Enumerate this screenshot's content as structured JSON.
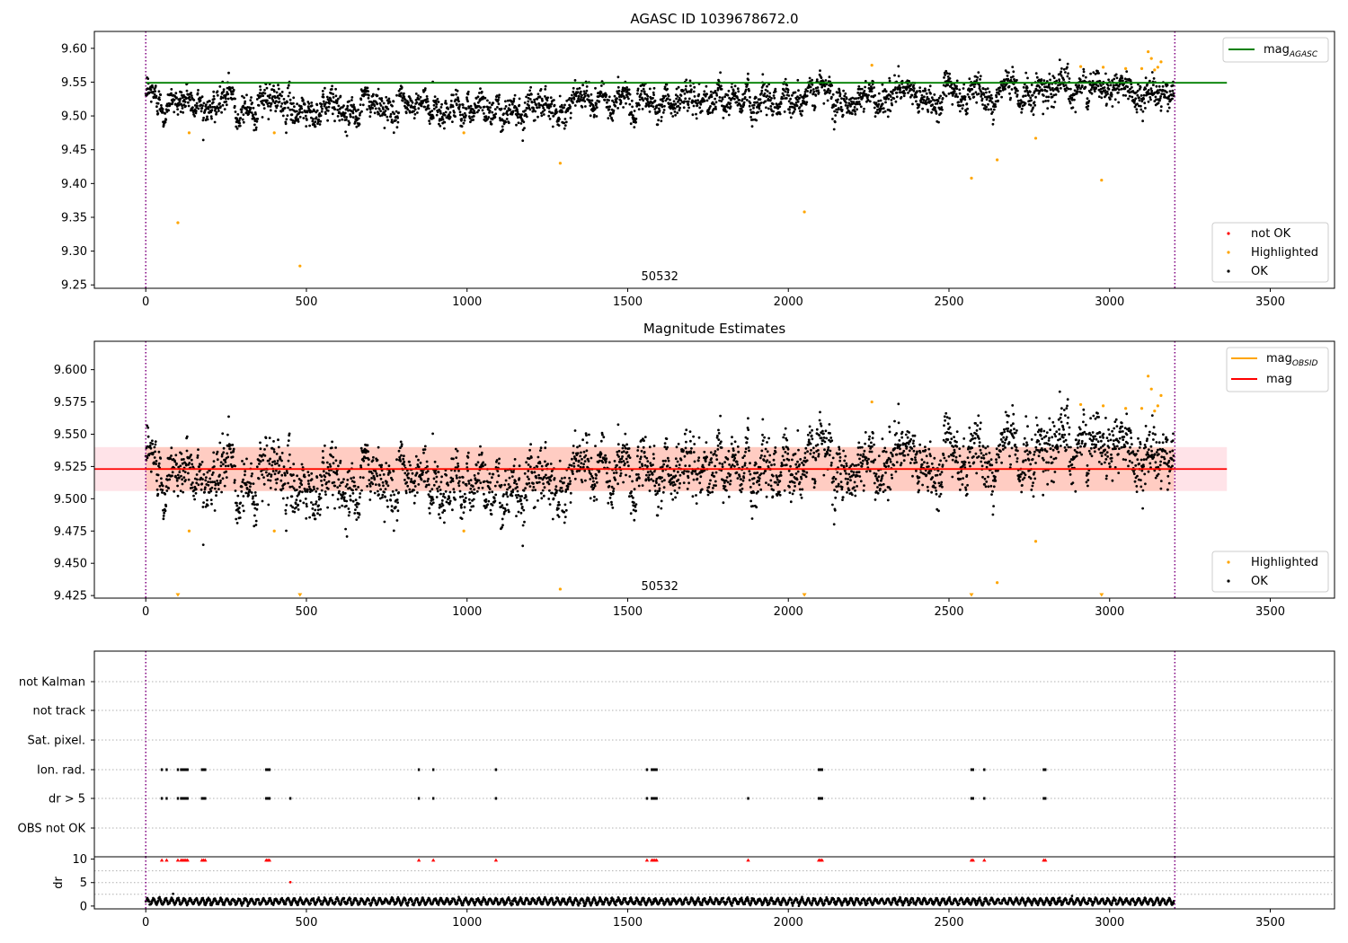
{
  "figure": {
    "title": "AGASC ID 1039678672.0"
  },
  "chart_data": [
    {
      "id": "mag-agasc-panel",
      "type": "scatter",
      "title": "",
      "xlabel": "",
      "ylabel": "",
      "xlim": [
        -160,
        3700
      ],
      "ylim": [
        9.245,
        9.625
      ],
      "xticks": [
        0,
        500,
        1000,
        1500,
        2000,
        2500,
        3000,
        3500
      ],
      "xtick_labels": [
        "0",
        "500",
        "1000",
        "1500",
        "2000",
        "2500",
        "3000",
        "3500"
      ],
      "yticks": [
        9.25,
        9.3,
        9.35,
        9.4,
        9.45,
        9.5,
        9.55,
        9.6
      ],
      "ytick_labels": [
        "9.25",
        "9.30",
        "9.35",
        "9.40",
        "9.45",
        "9.50",
        "9.55",
        "9.60"
      ],
      "obsid_label": "50532",
      "obsid_label_x": 1600,
      "obs_bounds": [
        0,
        3203
      ],
      "hline": {
        "name": "mag_AGASC",
        "y": 9.549,
        "x_range": [
          0,
          3365
        ],
        "color": "#008000"
      },
      "ok_points": {
        "name": "OK",
        "count": 3200,
        "x_range": [
          0,
          3200
        ],
        "baseline_knots": [
          [
            0,
            9.527
          ],
          [
            300,
            9.517
          ],
          [
            700,
            9.511
          ],
          [
            1000,
            9.515
          ],
          [
            1400,
            9.522
          ],
          [
            1800,
            9.522
          ],
          [
            2050,
            9.531
          ],
          [
            2400,
            9.527
          ],
          [
            2800,
            9.536
          ],
          [
            3100,
            9.545
          ],
          [
            3200,
            9.52
          ]
        ],
        "scatter": 0.012,
        "color": "#000000"
      },
      "highlighted_points": {
        "name": "Highlighted",
        "color": "#ffa500",
        "points": [
          [
            100,
            9.342
          ],
          [
            135,
            9.475
          ],
          [
            400,
            9.475
          ],
          [
            480,
            9.278
          ],
          [
            990,
            9.475
          ],
          [
            1290,
            9.43
          ],
          [
            2050,
            9.358
          ],
          [
            2260,
            9.575
          ],
          [
            2570,
            9.408
          ],
          [
            2650,
            9.435
          ],
          [
            2770,
            9.467
          ],
          [
            2910,
            9.573
          ],
          [
            2975,
            9.405
          ],
          [
            2980,
            9.572
          ],
          [
            3050,
            9.57
          ],
          [
            3100,
            9.57
          ],
          [
            3120,
            9.595
          ],
          [
            3130,
            9.585
          ],
          [
            3140,
            9.568
          ],
          [
            3150,
            9.572
          ],
          [
            3160,
            9.58
          ]
        ]
      },
      "legend_top": [
        {
          "label_main": "mag",
          "label_sub": "AGASC",
          "color": "#008000"
        }
      ],
      "legend_bottom": [
        {
          "label": "not OK",
          "color": "#ff0000"
        },
        {
          "label": "Highlighted",
          "color": "#ffa500"
        },
        {
          "label": "OK",
          "color": "#000000"
        }
      ]
    },
    {
      "id": "magnitude-estimates-panel",
      "type": "scatter",
      "title": "Magnitude Estimates",
      "xlabel": "",
      "ylabel": "",
      "xlim": [
        -160,
        3700
      ],
      "ylim": [
        9.423,
        9.622
      ],
      "xticks": [
        0,
        500,
        1000,
        1500,
        2000,
        2500,
        3000,
        3500
      ],
      "xtick_labels": [
        "0",
        "500",
        "1000",
        "1500",
        "2000",
        "2500",
        "3000",
        "3500"
      ],
      "yticks": [
        9.425,
        9.45,
        9.475,
        9.5,
        9.525,
        9.55,
        9.575,
        9.6
      ],
      "ytick_labels": [
        "9.425",
        "9.450",
        "9.475",
        "9.500",
        "9.525",
        "9.550",
        "9.575",
        "9.600"
      ],
      "obsid_label": "50532",
      "obsid_label_x": 1600,
      "obs_bounds": [
        0,
        3203
      ],
      "mag_line": {
        "name": "mag",
        "y": 9.523,
        "x_range": [
          -160,
          3365
        ],
        "color": "#ff0000"
      },
      "mag_band": {
        "y_range": [
          9.506,
          9.54
        ],
        "x_range": [
          -160,
          3365
        ],
        "color": "#ffc0cb"
      },
      "obsid_line": {
        "name": "mag_OBSID",
        "y": 9.523,
        "x_range": [
          0,
          3200
        ],
        "color": "#ffa500"
      },
      "obsid_band": {
        "y_range": [
          9.506,
          9.54
        ],
        "x_range": [
          0,
          3200
        ],
        "color": "#ffa07a"
      },
      "ok_points": {
        "name": "OK",
        "count": 3200,
        "x_range": [
          0,
          3200
        ],
        "baseline_knots": [
          [
            0,
            9.527
          ],
          [
            300,
            9.517
          ],
          [
            700,
            9.511
          ],
          [
            1000,
            9.515
          ],
          [
            1400,
            9.522
          ],
          [
            1800,
            9.522
          ],
          [
            2050,
            9.531
          ],
          [
            2400,
            9.527
          ],
          [
            2800,
            9.536
          ],
          [
            3100,
            9.545
          ],
          [
            3200,
            9.52
          ]
        ],
        "scatter": 0.012,
        "color": "#000000"
      },
      "highlighted_points": {
        "name": "Highlighted",
        "color": "#ffa500",
        "points": [
          [
            135,
            9.475
          ],
          [
            400,
            9.475
          ],
          [
            990,
            9.475
          ],
          [
            1290,
            9.43
          ],
          [
            2260,
            9.575
          ],
          [
            2650,
            9.435
          ],
          [
            2770,
            9.467
          ],
          [
            2910,
            9.573
          ],
          [
            2980,
            9.572
          ],
          [
            3050,
            9.57
          ],
          [
            3100,
            9.57
          ],
          [
            3120,
            9.595
          ],
          [
            3130,
            9.585
          ],
          [
            3140,
            9.568
          ],
          [
            3150,
            9.572
          ],
          [
            3160,
            9.58
          ]
        ]
      },
      "clipped_points": [
        100,
        480,
        2050,
        2570,
        2975
      ],
      "legend_top": [
        {
          "label_main": "mag",
          "label_sub": "OBSID",
          "color": "#ffa500"
        },
        {
          "label_main": "mag",
          "label_sub": "",
          "color": "#ff0000"
        }
      ],
      "legend_bottom": [
        {
          "label": "Highlighted",
          "color": "#ffa500"
        },
        {
          "label": "OK",
          "color": "#000000"
        }
      ]
    },
    {
      "id": "flags-panel",
      "type": "scatter",
      "title": "",
      "xlim": [
        -160,
        3700
      ],
      "obs_bounds": [
        0,
        3203
      ],
      "rows": [
        "not Kalman",
        "not track",
        "Sat. pixel.",
        "Ion. rad.",
        "dr > 5",
        "OBS not OK"
      ],
      "flagged_x": {
        "Ion. rad.": [
          50,
          65,
          100,
          110,
          115,
          120,
          125,
          130,
          175,
          180,
          185,
          375,
          380,
          385,
          850,
          895,
          1090,
          1560,
          1575,
          1580,
          1585,
          1590,
          2095,
          2100,
          2105,
          2570,
          2575,
          2610,
          2795,
          2800
        ],
        "dr > 5": [
          50,
          65,
          100,
          110,
          115,
          120,
          125,
          130,
          175,
          180,
          185,
          375,
          380,
          385,
          450,
          850,
          895,
          1090,
          1560,
          1575,
          1580,
          1585,
          1590,
          1875,
          2095,
          2100,
          2105,
          2570,
          2575,
          2610,
          2795,
          2800
        ]
      },
      "color": "#000000"
    },
    {
      "id": "dr-panel",
      "type": "scatter",
      "title": "",
      "xlabel": "",
      "ylabel": "dr",
      "xlim": [
        -160,
        3700
      ],
      "ylim": [
        -0.6,
        10.5
      ],
      "xticks": [
        0,
        500,
        1000,
        1500,
        2000,
        2500,
        3000,
        3500
      ],
      "xtick_labels": [
        "0",
        "500",
        "1000",
        "1500",
        "2000",
        "2500",
        "3000",
        "3500"
      ],
      "yticks": [
        0,
        5,
        10
      ],
      "ytick_labels": [
        "0",
        "5",
        "10"
      ],
      "obs_bounds": [
        0,
        3203
      ],
      "dr_points": {
        "count": 3200,
        "x_range": [
          0,
          3200
        ],
        "mean": 1.0,
        "amp": 0.6,
        "color": "#000000"
      },
      "outliers": [
        [
          85,
          2.6
        ],
        [
          450,
          5.1
        ]
      ],
      "clipped_red": [
        50,
        65,
        100,
        110,
        115,
        120,
        125,
        130,
        175,
        180,
        185,
        375,
        380,
        385,
        850,
        895,
        1090,
        1560,
        1575,
        1580,
        1585,
        1590,
        1875,
        2095,
        2100,
        2105,
        2570,
        2575,
        2610,
        2795,
        2800
      ],
      "clip_color": "#ff0000"
    }
  ]
}
